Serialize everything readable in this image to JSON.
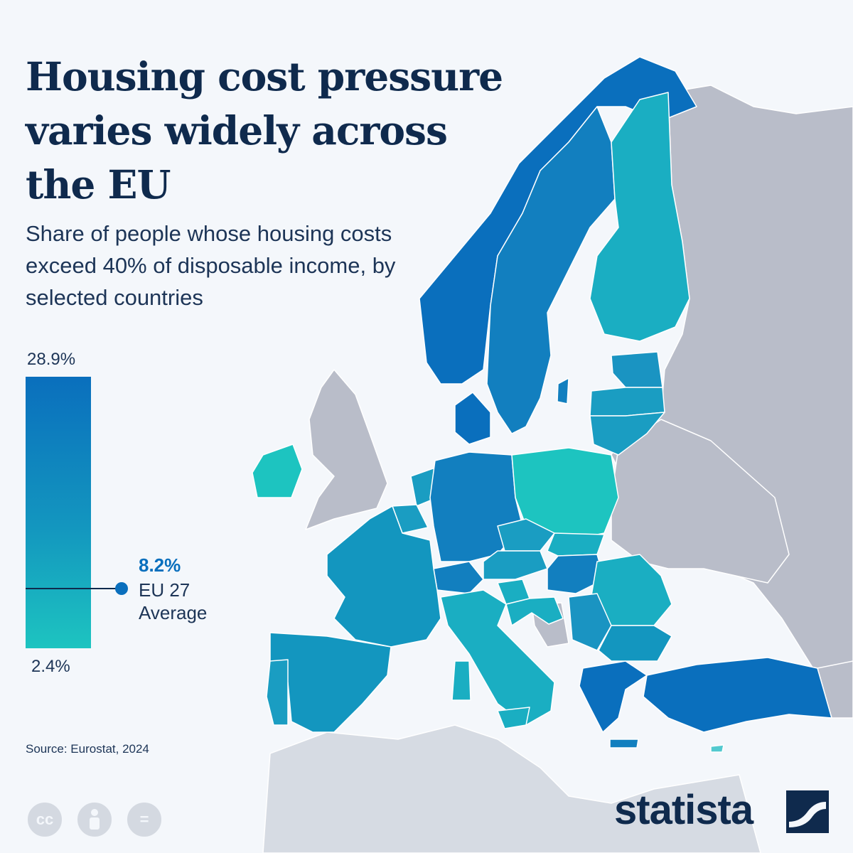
{
  "title": "Housing cost pressure varies widely across the EU",
  "subtitle": "Share of people whose housing costs exceed 40% of disposable income, by selected countries",
  "legend": {
    "max_label": "28.9%",
    "min_label": "2.4%",
    "max_value": 28.9,
    "min_value": 2.4,
    "avg_value_label": "8.2%",
    "avg_value": 8.2,
    "avg_label": "EU 27 Average",
    "colors": {
      "high": "#0a6fbd",
      "mid": "#1396bf",
      "low": "#1dc4c0"
    }
  },
  "source": "Source: Eurostat, 2024",
  "brand": "statista",
  "icons": [
    "creative-commons-icon",
    "attribution-icon",
    "no-derivatives-icon"
  ],
  "license_cc": "cc",
  "license_nd": "="
}
